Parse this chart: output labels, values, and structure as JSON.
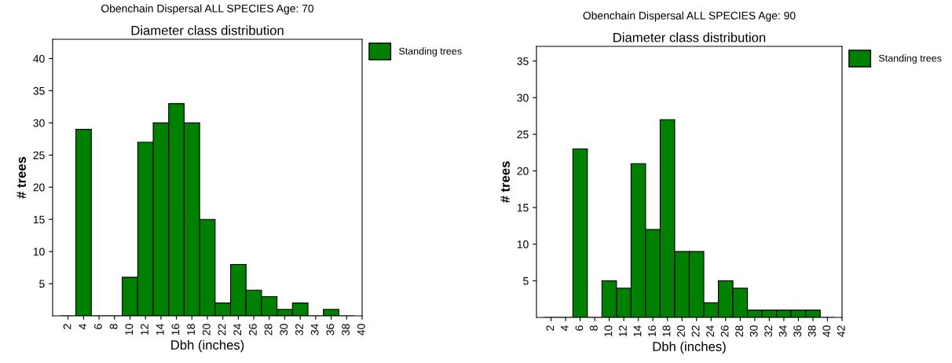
{
  "chart_data": [
    {
      "type": "histogram",
      "title": "Obenchain Dispersal ALL SPECIES Age: 70",
      "subtitle": "Diameter class distribution",
      "xlabel": "Dbh (inches)",
      "ylabel": "# trees",
      "bins": [
        1,
        3,
        5,
        7,
        9,
        11,
        13,
        15,
        17,
        19,
        21,
        23,
        25,
        27,
        29,
        31,
        33,
        35,
        37,
        39
      ],
      "series": [
        {
          "name": "Standing trees",
          "color": "#008000",
          "values": [
            0,
            29,
            0,
            0,
            6,
            27,
            30,
            33,
            30,
            15,
            2,
            8,
            4,
            3,
            1,
            2,
            0,
            1,
            0
          ]
        }
      ],
      "xlim": [
        0,
        40
      ],
      "xticks": [
        2,
        4,
        6,
        8,
        10,
        12,
        14,
        16,
        18,
        20,
        22,
        24,
        26,
        28,
        30,
        32,
        34,
        36,
        38,
        40
      ],
      "ylim": [
        0,
        43
      ],
      "yticks": [
        5,
        10,
        15,
        20,
        25,
        30,
        35,
        40
      ],
      "legend": "top right",
      "grid": false
    },
    {
      "type": "histogram",
      "title": "Obenchain Dispersal ALL SPECIES Age: 90",
      "subtitle": "Diameter class distribution",
      "xlabel": "Dbh (inches)",
      "ylabel": "# trees",
      "bins": [
        1,
        3,
        5,
        7,
        9,
        11,
        13,
        15,
        17,
        19,
        21,
        23,
        25,
        27,
        29,
        31,
        33,
        35,
        37,
        39,
        41
      ],
      "series": [
        {
          "name": "Standing trees",
          "color": "#008000",
          "values": [
            0,
            0,
            23,
            0,
            5,
            4,
            21,
            12,
            27,
            9,
            9,
            2,
            5,
            4,
            1,
            1,
            1,
            1,
            1,
            0
          ]
        }
      ],
      "xlim": [
        0,
        42
      ],
      "xticks": [
        2,
        4,
        6,
        8,
        10,
        12,
        14,
        16,
        18,
        20,
        22,
        24,
        26,
        28,
        30,
        32,
        34,
        36,
        38,
        40,
        42
      ],
      "ylim": [
        0,
        37
      ],
      "yticks": [
        5,
        10,
        15,
        20,
        25,
        30,
        35
      ],
      "legend": "top right",
      "grid": false
    }
  ]
}
